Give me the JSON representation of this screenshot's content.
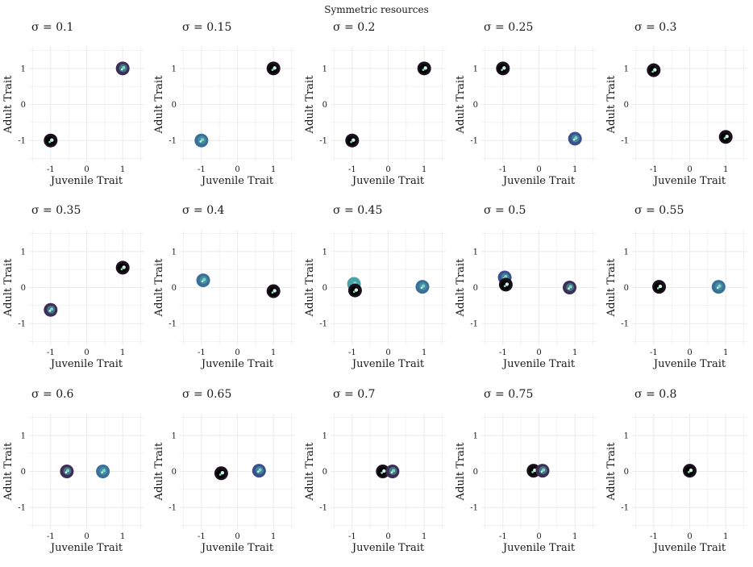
{
  "figure_title": "Symmetric resources",
  "axis_labels": {
    "x": "Juvenile Trait",
    "y": "Adult Trait"
  },
  "ticks": {
    "x": [
      "-1",
      "0",
      "1"
    ],
    "y": [
      "-1",
      "0",
      "1"
    ]
  },
  "colors": {
    "grid": "#ebebeb",
    "dark": "#1a0f1d",
    "purple": "#3c2e57",
    "navy": "#3b4f8c",
    "blue": "#3a6f98",
    "teal": "#4aa3a8",
    "mint": "#7fd6bf",
    "pale": "#d2f2e4"
  },
  "chart_data": [
    {
      "type": "scatter",
      "title": "σ = 0.1",
      "xlim": [
        -1.6,
        1.6
      ],
      "ylim": [
        -1.6,
        1.6
      ],
      "grid": true,
      "clusters": [
        {
          "x": 1.0,
          "y": 1.0,
          "color": "purple"
        },
        {
          "x": -1.0,
          "y": -1.0,
          "color": "dark"
        }
      ]
    },
    {
      "type": "scatter",
      "title": "σ = 0.15",
      "xlim": [
        -1.6,
        1.6
      ],
      "ylim": [
        -1.6,
        1.6
      ],
      "grid": true,
      "clusters": [
        {
          "x": 1.0,
          "y": 1.0,
          "color": "dark"
        },
        {
          "x": -1.0,
          "y": -1.0,
          "color": "blue"
        }
      ]
    },
    {
      "type": "scatter",
      "title": "σ = 0.2",
      "xlim": [
        -1.6,
        1.6
      ],
      "ylim": [
        -1.6,
        1.6
      ],
      "grid": true,
      "clusters": [
        {
          "x": 1.0,
          "y": 1.0,
          "color": "dark"
        },
        {
          "x": -1.0,
          "y": -1.0,
          "color": "dark"
        }
      ]
    },
    {
      "type": "scatter",
      "title": "σ = 0.25",
      "xlim": [
        -1.6,
        1.6
      ],
      "ylim": [
        -1.6,
        1.6
      ],
      "grid": true,
      "clusters": [
        {
          "x": -1.0,
          "y": 1.0,
          "color": "dark"
        },
        {
          "x": 1.0,
          "y": -0.95,
          "color": "navy"
        }
      ]
    },
    {
      "type": "scatter",
      "title": "σ = 0.3",
      "xlim": [
        -1.6,
        1.6
      ],
      "ylim": [
        -1.6,
        1.6
      ],
      "grid": true,
      "clusters": [
        {
          "x": -1.0,
          "y": 0.95,
          "color": "dark"
        },
        {
          "x": 1.0,
          "y": -0.9,
          "color": "dark"
        }
      ]
    },
    {
      "type": "scatter",
      "title": "σ = 0.35",
      "xlim": [
        -1.6,
        1.6
      ],
      "ylim": [
        -1.6,
        1.6
      ],
      "grid": true,
      "clusters": [
        {
          "x": 1.0,
          "y": 0.55,
          "color": "dark"
        },
        {
          "x": -1.0,
          "y": -0.62,
          "color": "purple"
        }
      ]
    },
    {
      "type": "scatter",
      "title": "σ = 0.4",
      "xlim": [
        -1.6,
        1.6
      ],
      "ylim": [
        -1.6,
        1.6
      ],
      "grid": true,
      "clusters": [
        {
          "x": -0.95,
          "y": 0.2,
          "color": "blue"
        },
        {
          "x": 1.0,
          "y": -0.1,
          "color": "dark"
        }
      ]
    },
    {
      "type": "scatter",
      "title": "σ = 0.45",
      "xlim": [
        -1.6,
        1.6
      ],
      "ylim": [
        -1.6,
        1.6
      ],
      "grid": true,
      "clusters": [
        {
          "x": -0.95,
          "y": 0.1,
          "color": "teal"
        },
        {
          "x": -0.92,
          "y": -0.08,
          "color": "dark"
        },
        {
          "x": 0.95,
          "y": 0.02,
          "color": "blue"
        }
      ]
    },
    {
      "type": "scatter",
      "title": "σ = 0.5",
      "xlim": [
        -1.6,
        1.6
      ],
      "ylim": [
        -1.6,
        1.6
      ],
      "grid": true,
      "clusters": [
        {
          "x": -0.95,
          "y": 0.28,
          "color": "navy"
        },
        {
          "x": -0.92,
          "y": 0.08,
          "color": "dark"
        },
        {
          "x": 0.85,
          "y": 0.0,
          "color": "purple"
        }
      ]
    },
    {
      "type": "scatter",
      "title": "σ = 0.55",
      "xlim": [
        -1.6,
        1.6
      ],
      "ylim": [
        -1.6,
        1.6
      ],
      "grid": true,
      "clusters": [
        {
          "x": -0.85,
          "y": 0.02,
          "color": "dark"
        },
        {
          "x": 0.8,
          "y": 0.02,
          "color": "blue"
        }
      ]
    },
    {
      "type": "scatter",
      "title": "σ = 0.6",
      "xlim": [
        -1.6,
        1.6
      ],
      "ylim": [
        -1.6,
        1.6
      ],
      "grid": true,
      "clusters": [
        {
          "x": -0.55,
          "y": 0.0,
          "color": "purple"
        },
        {
          "x": 0.45,
          "y": 0.0,
          "color": "blue"
        }
      ]
    },
    {
      "type": "scatter",
      "title": "σ = 0.65",
      "xlim": [
        -1.6,
        1.6
      ],
      "ylim": [
        -1.6,
        1.6
      ],
      "grid": true,
      "clusters": [
        {
          "x": -0.45,
          "y": -0.05,
          "color": "dark"
        },
        {
          "x": 0.6,
          "y": 0.02,
          "color": "navy"
        }
      ]
    },
    {
      "type": "scatter",
      "title": "σ = 0.7",
      "xlim": [
        -1.6,
        1.6
      ],
      "ylim": [
        -1.6,
        1.6
      ],
      "grid": true,
      "clusters": [
        {
          "x": -0.15,
          "y": 0.0,
          "color": "dark"
        },
        {
          "x": 0.12,
          "y": 0.0,
          "color": "purple"
        }
      ]
    },
    {
      "type": "scatter",
      "title": "σ = 0.75",
      "xlim": [
        -1.6,
        1.6
      ],
      "ylim": [
        -1.6,
        1.6
      ],
      "grid": true,
      "clusters": [
        {
          "x": -0.15,
          "y": 0.02,
          "color": "dark"
        },
        {
          "x": 0.1,
          "y": 0.02,
          "color": "purple"
        }
      ]
    },
    {
      "type": "scatter",
      "title": "σ = 0.8",
      "xlim": [
        -1.6,
        1.6
      ],
      "ylim": [
        -1.6,
        1.6
      ],
      "grid": true,
      "clusters": [
        {
          "x": 0.0,
          "y": 0.02,
          "color": "dark"
        }
      ]
    }
  ]
}
